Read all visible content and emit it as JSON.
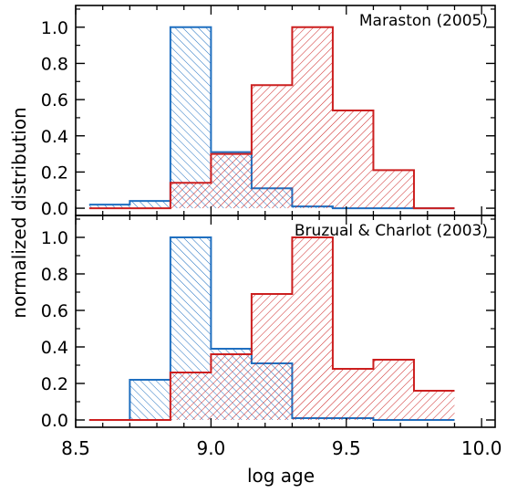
{
  "chart_data": [
    {
      "type": "bar",
      "panel": "top",
      "annotation": "Maraston (2005)",
      "xlim": [
        8.5,
        10.05
      ],
      "ylim": [
        -0.04,
        1.12
      ],
      "yticks": [
        "0.0",
        "0.2",
        "0.4",
        "0.6",
        "0.8",
        "1.0"
      ],
      "bin_edges": [
        8.55,
        8.7,
        8.85,
        9.0,
        9.15,
        9.3,
        9.45,
        9.6,
        9.75,
        9.9
      ],
      "series": [
        {
          "color": "#1f6fc0",
          "hatch": "backslash",
          "values": [
            0.02,
            0.04,
            1.0,
            0.31,
            0.11,
            0.01,
            0.0,
            0.0,
            0.0
          ]
        },
        {
          "color": "#cc1f1f",
          "hatch": "slash",
          "values": [
            0.0,
            0.0,
            0.14,
            0.3,
            0.68,
            1.0,
            0.54,
            0.21,
            0.0
          ]
        }
      ]
    },
    {
      "type": "bar",
      "panel": "bottom",
      "annotation": "Bruzual & Charlot (2003)",
      "xlim": [
        8.5,
        10.05
      ],
      "ylim": [
        -0.04,
        1.12
      ],
      "yticks": [
        "0.0",
        "0.2",
        "0.4",
        "0.6",
        "0.8",
        "1.0"
      ],
      "xticks": [
        "8.5",
        "9.0",
        "9.5",
        "10.0"
      ],
      "xlabel": "log age",
      "ylabel": "normalized distribution",
      "bin_edges": [
        8.55,
        8.7,
        8.85,
        9.0,
        9.15,
        9.3,
        9.45,
        9.6,
        9.75,
        9.9
      ],
      "series": [
        {
          "color": "#1f6fc0",
          "hatch": "backslash",
          "values": [
            0.0,
            0.22,
            1.0,
            0.39,
            0.31,
            0.01,
            0.01,
            0.0,
            0.0
          ]
        },
        {
          "color": "#cc1f1f",
          "hatch": "slash",
          "values": [
            0.0,
            0.0,
            0.26,
            0.36,
            0.69,
            1.0,
            0.28,
            0.33,
            0.16
          ]
        }
      ]
    }
  ]
}
